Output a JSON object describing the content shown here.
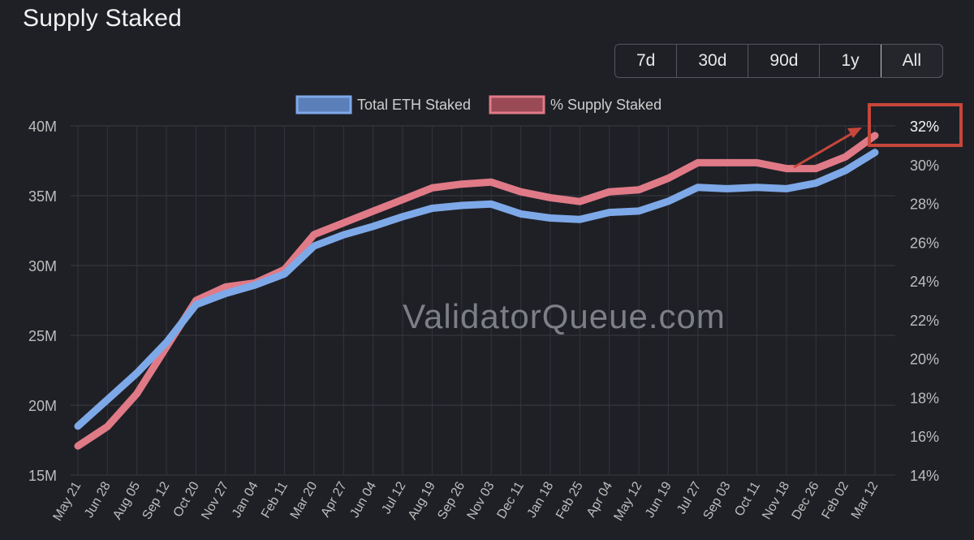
{
  "title": "Supply Staked",
  "range_buttons": [
    {
      "label": "7d",
      "active": false
    },
    {
      "label": "30d",
      "active": false
    },
    {
      "label": "90d",
      "active": false
    },
    {
      "label": "1y",
      "active": false
    },
    {
      "label": "All",
      "active": true
    }
  ],
  "watermark": "ValidatorQueue.com",
  "colors": {
    "background": "#1f2026",
    "grid": "#3a3b42",
    "total_eth": "#7ea9e8",
    "supply_pct": "#e07a87",
    "highlight": "#c8463a"
  },
  "chart_data": {
    "type": "line",
    "legend": {
      "placement": "top-center",
      "entries": [
        "Total ETH Staked",
        "% Supply Staked"
      ]
    },
    "grid": true,
    "x_tick_labels": [
      "May 21",
      "Jun 28",
      "Aug 05",
      "Sep 12",
      "Oct 20",
      "Nov 27",
      "Jan 04",
      "Feb 11",
      "Mar 20",
      "Apr 27",
      "Jun 04",
      "Jul 12",
      "Aug 19",
      "Sep 26",
      "Nov 03",
      "Dec 11",
      "Jan 18",
      "Feb 25",
      "Apr 04",
      "May 12",
      "Jun 19",
      "Jul 27",
      "Sep 03",
      "Oct 11",
      "Nov 18",
      "Dec 26",
      "Feb 02",
      "Mar 12"
    ],
    "y_left": {
      "tick_labels": [
        "40M",
        "35M",
        "30M",
        "25M",
        "20M",
        "15M"
      ],
      "range": [
        15,
        40
      ]
    },
    "y_right": {
      "tick_labels": [
        "32%",
        "30%",
        "28%",
        "26%",
        "24%",
        "22%",
        "20%",
        "18%",
        "16%",
        "14%"
      ],
      "range": [
        14,
        32
      ]
    },
    "series": [
      {
        "name": "Total ETH Staked",
        "axis": "left",
        "values": [
          18.5,
          20.4,
          22.3,
          24.5,
          27.2,
          28.0,
          28.6,
          29.4,
          31.4,
          32.2,
          32.8,
          33.5,
          34.1,
          34.3,
          34.4,
          33.7,
          33.4,
          33.3,
          33.8,
          33.9,
          34.6,
          35.6,
          35.5,
          35.6,
          35.5,
          35.9,
          36.8,
          38.1
        ]
      },
      {
        "name": "% Supply Staked",
        "axis": "right",
        "values": [
          15.5,
          16.5,
          18.2,
          20.6,
          23.0,
          23.7,
          23.9,
          24.6,
          26.4,
          27.0,
          27.6,
          28.2,
          28.8,
          29.0,
          29.1,
          28.6,
          28.3,
          28.1,
          28.6,
          28.7,
          29.3,
          30.1,
          30.1,
          30.1,
          29.8,
          29.8,
          30.4,
          31.5
        ]
      }
    ],
    "annotation": {
      "label": "32%"
    }
  }
}
